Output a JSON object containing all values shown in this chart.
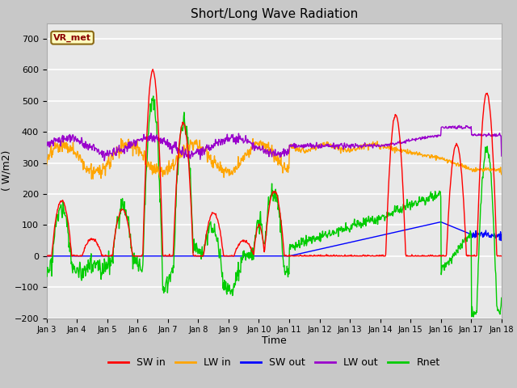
{
  "title": "Short/Long Wave Radiation",
  "xlabel": "Time",
  "ylabel": "( W/m2)",
  "ylim": [
    -200,
    750
  ],
  "yticks": [
    -200,
    -100,
    0,
    100,
    200,
    300,
    400,
    500,
    600,
    700
  ],
  "colors": {
    "SW_in": "#ff0000",
    "LW_in": "#ffa500",
    "SW_out": "#0000ff",
    "LW_out": "#9900cc",
    "Rnet": "#00cc00"
  },
  "legend_labels": [
    "SW in",
    "LW in",
    "SW out",
    "LW out",
    "Rnet"
  ],
  "label_box": "VR_met",
  "fig_bg_color": "#c8c8c8",
  "plot_bg_color": "#e8e8e8",
  "grid_color": "#ffffff",
  "n_points": 960
}
